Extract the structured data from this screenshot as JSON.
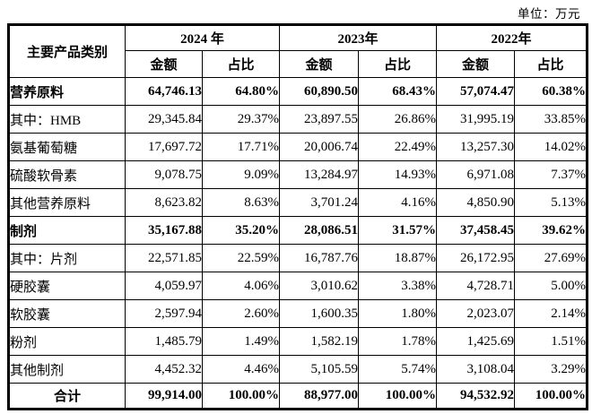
{
  "unit_label": "单位：万元",
  "table": {
    "corner_header": "主要产品类别",
    "year_headers": [
      "2024 年",
      "2023年",
      "2022年"
    ],
    "sub_headers": [
      "金额",
      "占比"
    ],
    "rows": [
      {
        "label": "营养原料",
        "bold": true,
        "values": [
          "64,746.13",
          "64.80%",
          "60,890.50",
          "68.43%",
          "57,074.47",
          "60.38%"
        ]
      },
      {
        "label": "其中：HMB",
        "bold": false,
        "values": [
          "29,345.84",
          "29.37%",
          "23,897.55",
          "26.86%",
          "31,995.19",
          "33.85%"
        ]
      },
      {
        "label": "氨基葡萄糖",
        "bold": false,
        "values": [
          "17,697.72",
          "17.71%",
          "20,006.74",
          "22.49%",
          "13,257.30",
          "14.02%"
        ]
      },
      {
        "label": "硫酸软骨素",
        "bold": false,
        "values": [
          "9,078.75",
          "9.09%",
          "13,284.97",
          "14.93%",
          "6,971.08",
          "7.37%"
        ]
      },
      {
        "label": "其他营养原料",
        "bold": false,
        "values": [
          "8,623.82",
          "8.63%",
          "3,701.24",
          "4.16%",
          "4,850.90",
          "5.13%"
        ]
      },
      {
        "label": "制剂",
        "bold": true,
        "values": [
          "35,167.88",
          "35.20%",
          "28,086.51",
          "31.57%",
          "37,458.45",
          "39.62%"
        ]
      },
      {
        "label": "其中：片剂",
        "bold": false,
        "values": [
          "22,571.85",
          "22.59%",
          "16,787.76",
          "18.87%",
          "26,172.95",
          "27.69%"
        ]
      },
      {
        "label": "硬胶囊",
        "bold": false,
        "values": [
          "4,059.97",
          "4.06%",
          "3,010.62",
          "3.38%",
          "4,728.71",
          "5.00%"
        ]
      },
      {
        "label": "软胶囊",
        "bold": false,
        "values": [
          "2,597.94",
          "2.60%",
          "1,600.35",
          "1.80%",
          "2,023.07",
          "2.14%"
        ]
      },
      {
        "label": "粉剂",
        "bold": false,
        "values": [
          "1,485.79",
          "1.49%",
          "1,582.19",
          "1.78%",
          "1,425.69",
          "1.51%"
        ]
      },
      {
        "label": "其他制剂",
        "bold": false,
        "values": [
          "4,452.32",
          "4.46%",
          "5,105.59",
          "5.74%",
          "3,108.04",
          "3.29%"
        ]
      }
    ],
    "total_row": {
      "label": "合计",
      "values": [
        "99,914.00",
        "100.00%",
        "88,977.00",
        "100.00%",
        "94,532.92",
        "100.00%"
      ]
    }
  },
  "colors": {
    "border": "#000000",
    "text": "#000000",
    "background": "#ffffff"
  }
}
